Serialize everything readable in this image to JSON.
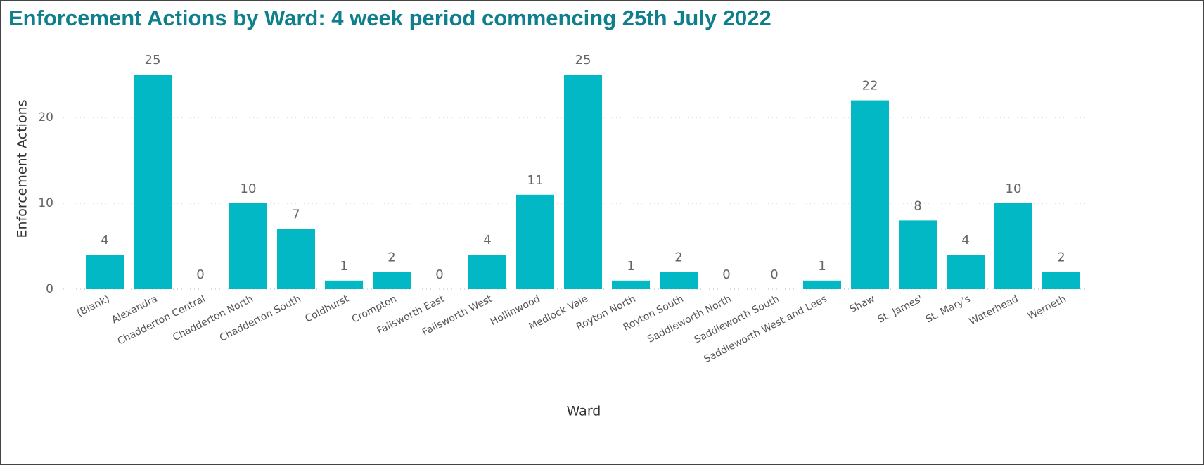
{
  "chart_data": {
    "type": "bar",
    "title": "Enforcement Actions by Ward: 4 week period commencing 25th July 2022",
    "x_label": "Ward",
    "y_label": "Enforcement Actions",
    "categories": [
      "(Blank)",
      "Alexandra",
      "Chadderton Central",
      "Chadderton North",
      "Chadderton South",
      "Coldhurst",
      "Crompton",
      "Failsworth East",
      "Failsworth West",
      "Hollinwood",
      "Medlock Vale",
      "Royton North",
      "Royton South",
      "Saddleworth North",
      "Saddleworth South",
      "Saddleworth West and Lees",
      "Shaw",
      "St. James'",
      "St. Mary's",
      "Waterhead",
      "Werneth"
    ],
    "values": [
      4,
      25,
      0,
      10,
      7,
      1,
      2,
      0,
      4,
      11,
      25,
      1,
      2,
      0,
      0,
      1,
      22,
      8,
      4,
      10,
      2
    ],
    "color": "#01b8c4",
    "ylim": [
      0,
      25
    ],
    "yticks": [
      0,
      10,
      20
    ],
    "grid": true
  }
}
